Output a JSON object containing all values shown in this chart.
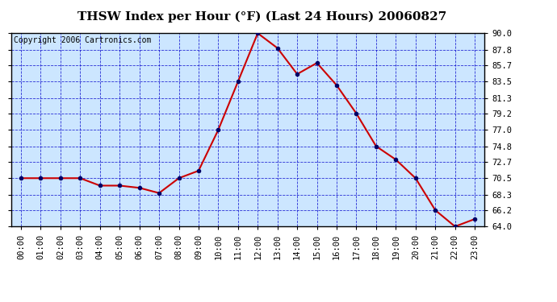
{
  "title": "THSW Index per Hour (°F) (Last 24 Hours) 20060827",
  "copyright": "Copyright 2006 Cartronics.com",
  "hours": [
    0,
    1,
    2,
    3,
    4,
    5,
    6,
    7,
    8,
    9,
    10,
    11,
    12,
    13,
    14,
    15,
    16,
    17,
    18,
    19,
    20,
    21,
    22,
    23
  ],
  "hour_labels": [
    "00:00",
    "01:00",
    "02:00",
    "03:00",
    "04:00",
    "05:00",
    "06:00",
    "07:00",
    "08:00",
    "09:00",
    "10:00",
    "11:00",
    "12:00",
    "13:00",
    "14:00",
    "15:00",
    "16:00",
    "17:00",
    "18:00",
    "19:00",
    "20:00",
    "21:00",
    "22:00",
    "23:00"
  ],
  "values": [
    70.5,
    70.5,
    70.5,
    70.5,
    69.5,
    69.5,
    69.2,
    68.5,
    70.5,
    71.5,
    77.0,
    83.5,
    90.0,
    88.0,
    84.5,
    86.0,
    83.0,
    79.2,
    74.8,
    73.0,
    70.5,
    66.2,
    64.0,
    65.0
  ],
  "ylim_min": 64.0,
  "ylim_max": 90.0,
  "yticks": [
    64.0,
    66.2,
    68.3,
    70.5,
    72.7,
    74.8,
    77.0,
    79.2,
    81.3,
    83.5,
    85.7,
    87.8,
    90.0
  ],
  "line_color": "#cc0000",
  "marker_color": "#000066",
  "bg_color": "#cce6ff",
  "outer_bg": "#ffffff",
  "grid_color": "#0000cc",
  "title_color": "#000000",
  "copyright_color": "#000000",
  "title_fontsize": 11,
  "copyright_fontsize": 7,
  "tick_fontsize": 7.5
}
